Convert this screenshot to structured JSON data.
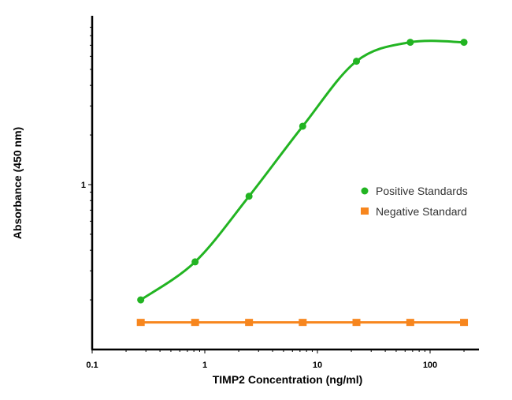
{
  "chart_data": {
    "type": "line",
    "title": "",
    "xlabel": "TIMP2 Concentration (ng/ml)",
    "ylabel": "Absorbance (450 nm)",
    "x_scale": "log",
    "y_scale": "log",
    "xlim": [
      0.1,
      300
    ],
    "ylim": [
      0.1,
      10.5
    ],
    "x_ticks": [
      {
        "value": 0.1,
        "label": "0.1"
      },
      {
        "value": 1,
        "label": "1"
      },
      {
        "value": 10,
        "label": "10"
      },
      {
        "value": 100,
        "label": "100"
      }
    ],
    "y_ticks": [
      {
        "value": 1,
        "label": "1"
      }
    ],
    "grid": false,
    "legend_position": "right",
    "series": [
      {
        "name": "Positive Standards",
        "color": "#22b422",
        "marker": "circle",
        "curve": "smooth-fit",
        "x": [
          0.27,
          0.82,
          2.47,
          7.4,
          22.2,
          66.7,
          200
        ],
        "y": [
          0.2,
          0.34,
          0.85,
          2.26,
          5.6,
          7.3,
          7.3
        ]
      },
      {
        "name": "Negative Standard",
        "color": "#f7861e",
        "marker": "square",
        "curve": "straight",
        "x": [
          0.27,
          0.82,
          2.47,
          7.4,
          22.2,
          66.7,
          200
        ],
        "y": [
          0.146,
          0.146,
          0.146,
          0.146,
          0.146,
          0.146,
          0.146
        ]
      }
    ]
  }
}
